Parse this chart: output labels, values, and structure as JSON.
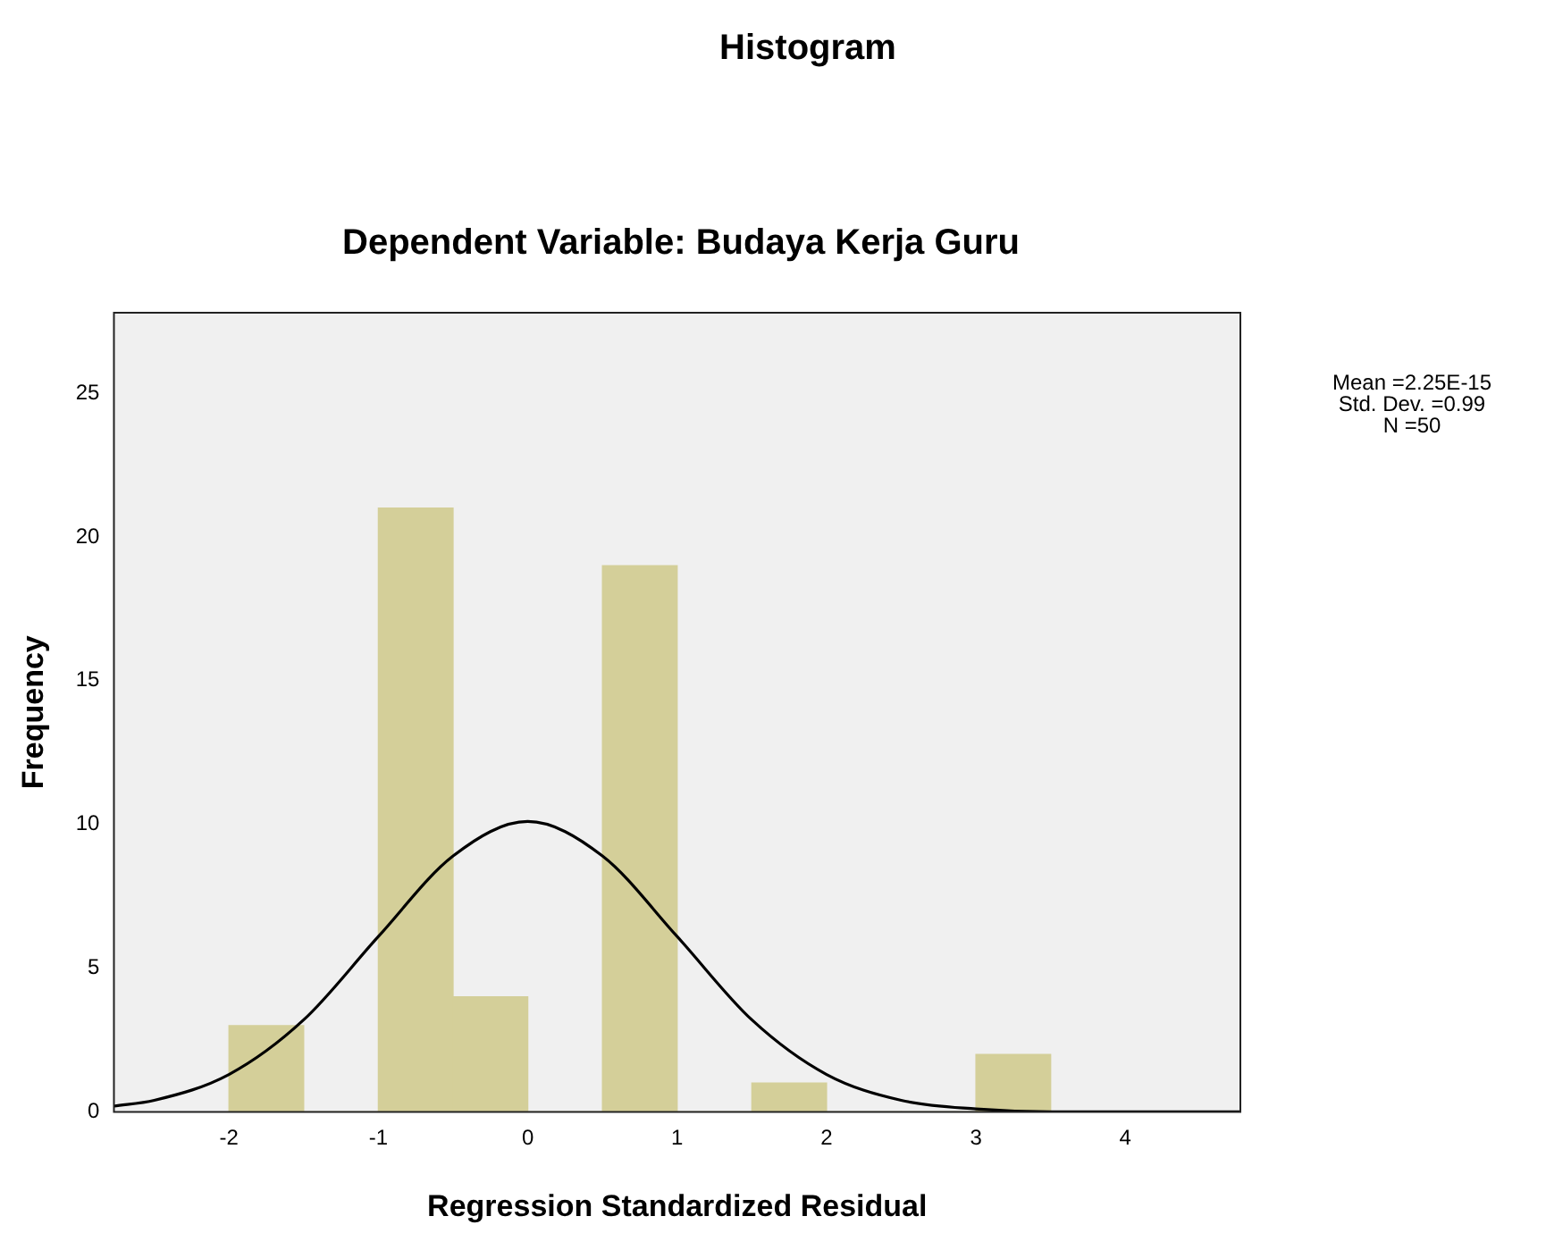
{
  "chart_data": {
    "type": "histogram",
    "title": "Histogram",
    "subtitle": "Dependent Variable: Budaya Kerja Guru",
    "xlabel": "Regression Standardized Residual",
    "ylabel": "Frequency",
    "bins": [
      -2,
      -1.5,
      -1,
      -0.5,
      0,
      0.5,
      1,
      1.5,
      2,
      2.5,
      3,
      3.5
    ],
    "values": [
      3,
      0,
      21,
      4,
      0,
      19,
      0,
      1,
      0,
      0,
      2
    ],
    "color": "#d4cf99",
    "xlim": [
      -2.77,
      4.77
    ],
    "ylim": [
      0,
      27.8
    ],
    "xticks": [
      -2,
      -1,
      0,
      1,
      2,
      3,
      4
    ],
    "yticks": [
      0,
      5,
      10,
      15,
      20,
      25
    ],
    "grid": false,
    "legend": false,
    "marker": "none",
    "annotations": [
      "Mean =2.25E-15",
      "Std. Dev. =0.99",
      "N =50"
    ],
    "series": [
      {
        "type": "line",
        "color": "#000000",
        "x": [
          -2.77,
          -2.5,
          -2,
          -1.5,
          -1,
          -0.5,
          0,
          0.5,
          1,
          1.5,
          2,
          2.5,
          3,
          3.5,
          4,
          4.77
        ],
        "values": [
          0.2,
          0.4,
          1.3,
          3.2,
          6.1,
          8.9,
          10.1,
          8.9,
          6.1,
          3.2,
          1.3,
          0.4,
          0.1,
          0,
          0,
          0
        ]
      }
    ]
  }
}
